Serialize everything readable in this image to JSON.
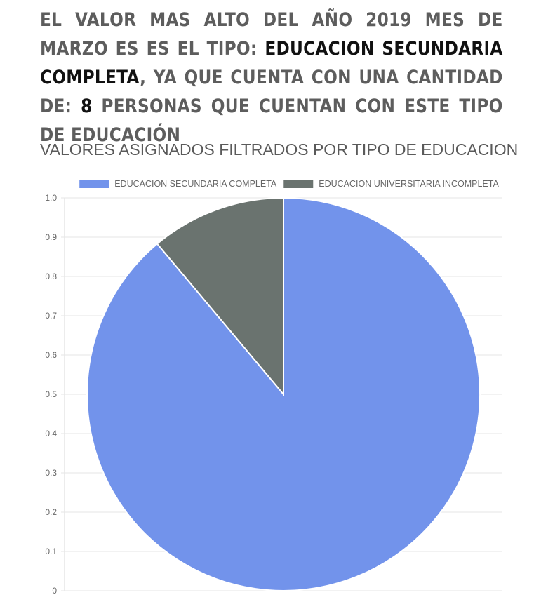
{
  "headline": {
    "part1": "EL VALOR MAS ALTO DEL AÑO 2019 MES DE MARZO ES ES EL TIPO: ",
    "category": "EDUCACION SECUNDARIA COMPLETA",
    "part2": ", YA QUE CUENTA CON UNA CANTIDAD DE: ",
    "count": "8",
    "part3": " PERSONAS QUE CUENTAN CON ESTE TIPO DE EDUCACIÓN"
  },
  "chart_data": {
    "type": "pie",
    "title": "VALORES ASIGNADOS FILTRADOS POR TIPO DE EDUCACION",
    "legend_position": "top",
    "categories": [
      "EDUCACION SECUNDARIA COMPLETA",
      "EDUCACION UNIVERSITARIA INCOMPLETA"
    ],
    "values": [
      8,
      1
    ],
    "colors": [
      "#7293eb",
      "#6a736f"
    ],
    "y_axis_ticks": [
      "0",
      "0.1",
      "0.2",
      "0.3",
      "0.4",
      "0.5",
      "0.6",
      "0.7",
      "0.8",
      "0.9",
      "1.0"
    ],
    "ylim": [
      0,
      1
    ],
    "grid": true
  }
}
